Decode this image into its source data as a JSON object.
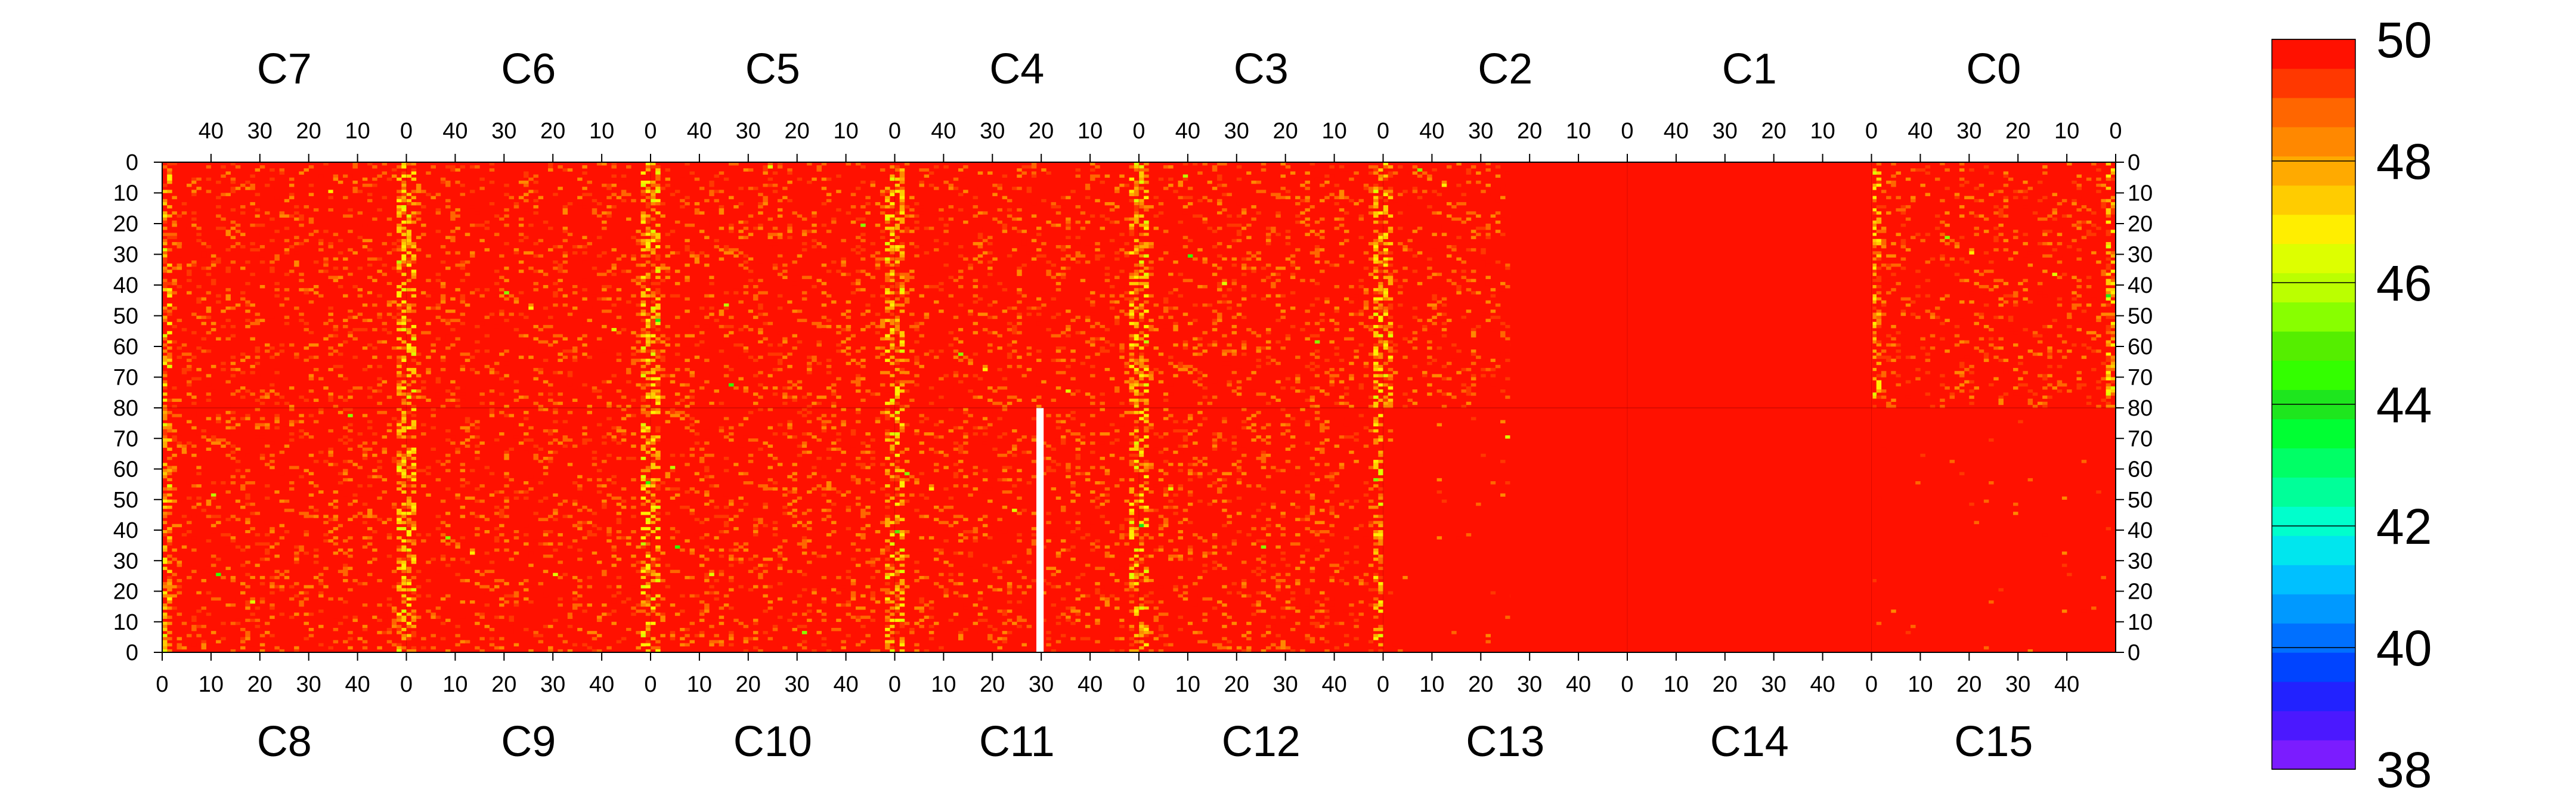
{
  "chart_data": {
    "type": "heatmap",
    "title": "",
    "xlabel": "",
    "ylabel": "",
    "top_panels": [
      "C7",
      "C6",
      "C5",
      "C4",
      "C3",
      "C2",
      "C1",
      "C0"
    ],
    "bottom_panels": [
      "C8",
      "C9",
      "C10",
      "C11",
      "C12",
      "C13",
      "C14",
      "C15"
    ],
    "top_x_tick_labels": [
      "40",
      "30",
      "20",
      "10",
      "0"
    ],
    "bottom_x_tick_labels": [
      "0",
      "10",
      "20",
      "30",
      "40"
    ],
    "top_y_tick_labels": [
      "0",
      "10",
      "20",
      "30",
      "40",
      "50",
      "60",
      "70",
      "80"
    ],
    "bottom_y_tick_labels": [
      "80",
      "70",
      "60",
      "50",
      "40",
      "30",
      "20",
      "10",
      "0"
    ],
    "x_range": [
      0,
      50
    ],
    "y_range": [
      0,
      80
    ],
    "color_scale": {
      "min": 38,
      "max": 50,
      "tick_labels": [
        "50",
        "48",
        "46",
        "44",
        "42",
        "40",
        "38"
      ],
      "colors": [
        "#7b1cff",
        "#4b18ff",
        "#2222ff",
        "#0044ff",
        "#0070ff",
        "#0099ff",
        "#00c0ff",
        "#00e6ee",
        "#00ffcc",
        "#00ff99",
        "#00ff66",
        "#00ff33",
        "#1ee61e",
        "#33ff00",
        "#55ee00",
        "#88ff00",
        "#bbff00",
        "#ddff00",
        "#ffee00",
        "#ffcc00",
        "#ffaa00",
        "#ff8800",
        "#ff6600",
        "#ff3800",
        "#ff1100"
      ]
    },
    "typical_value": 50,
    "edge_column_values": [
      46.5,
      47.5
    ],
    "dead_strip": {
      "panel": "C11",
      "x": [
        29,
        30
      ],
      "y": [
        0,
        80
      ],
      "color": "#ffffff"
    },
    "uniform_panels": [
      "C13",
      "C14",
      "C15",
      "C1"
    ],
    "legend_position": "right"
  }
}
